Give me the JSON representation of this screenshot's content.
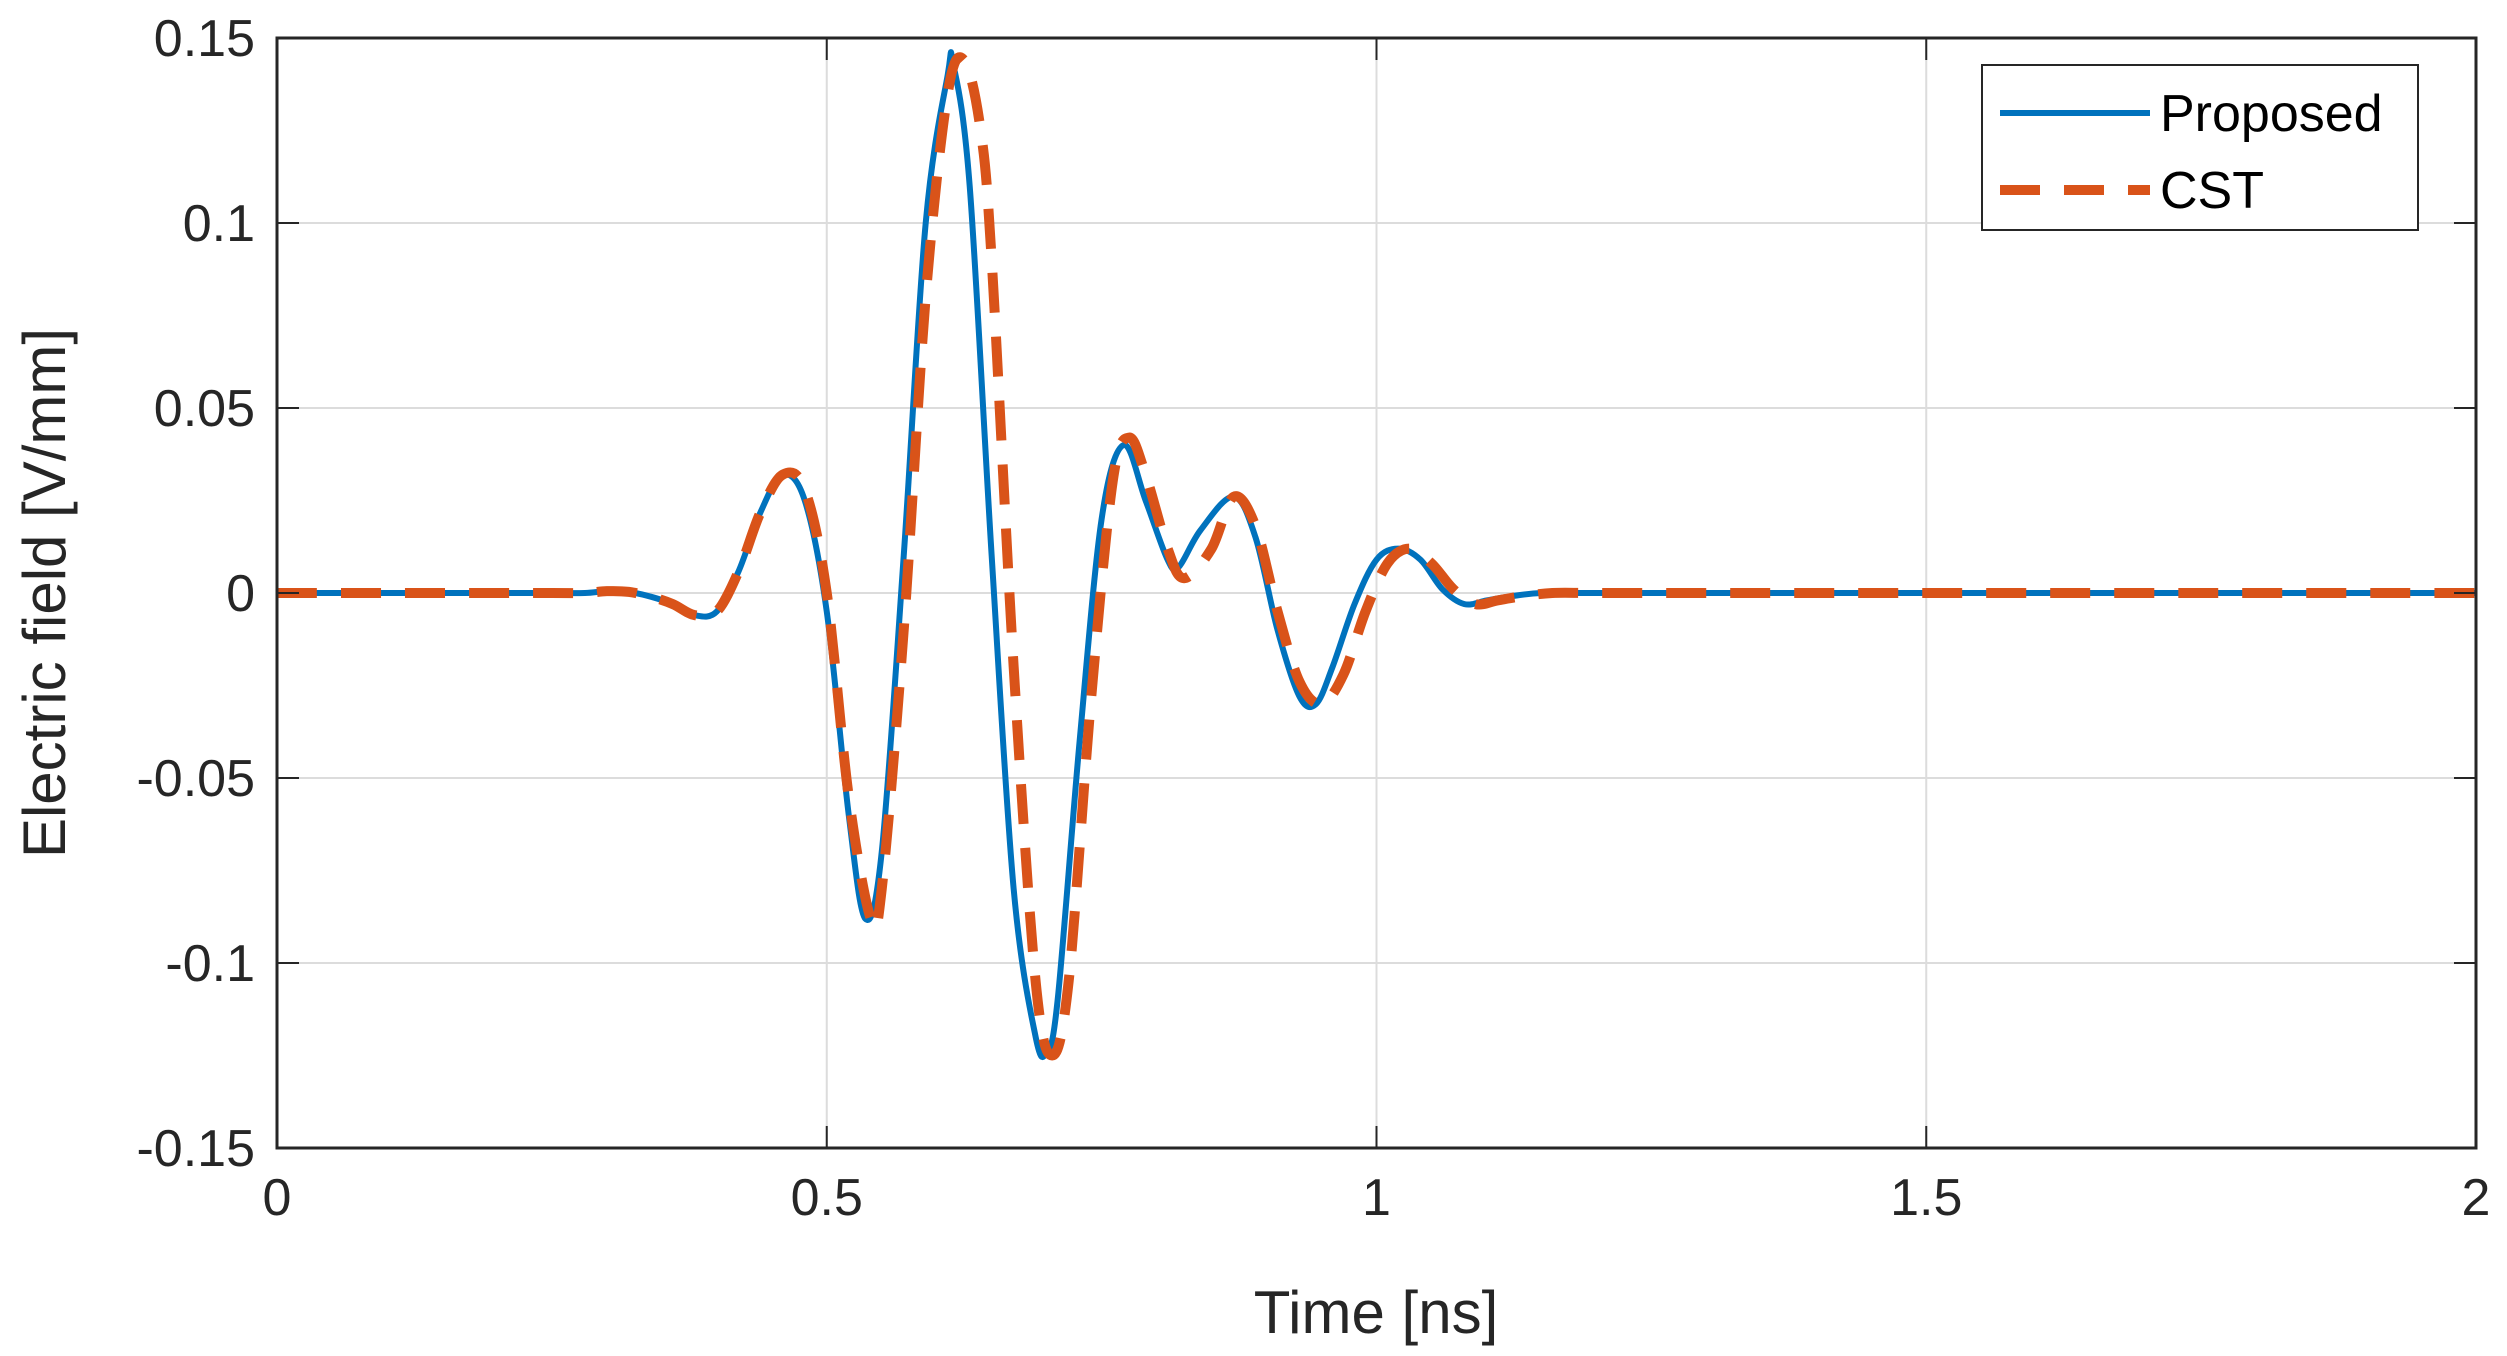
{
  "chart_data": {
    "type": "line",
    "title": "",
    "xlabel": "Time [ns]",
    "ylabel": "Electric field [V/mm]",
    "xlim": [
      0,
      2
    ],
    "ylim": [
      -0.15,
      0.15
    ],
    "xticks": [
      0,
      0.5,
      1,
      1.5,
      2
    ],
    "xtick_labels": [
      "0",
      "0.5",
      "1",
      "1.5",
      "2"
    ],
    "yticks": [
      -0.15,
      -0.1,
      -0.05,
      0,
      0.05,
      0.1,
      0.15
    ],
    "ytick_labels": [
      "-0.15",
      "-0.1",
      "-0.05",
      "0",
      "0.05",
      "0.1",
      "0.15"
    ],
    "grid": true,
    "legend_position": "top-right",
    "series": [
      {
        "name": "Proposed",
        "color": "#0072BD",
        "style": "solid",
        "x": [
          0,
          0.1,
          0.2,
          0.25,
          0.28,
          0.3,
          0.32,
          0.34,
          0.36,
          0.38,
          0.4,
          0.42,
          0.44,
          0.46,
          0.48,
          0.5,
          0.52,
          0.535,
          0.55,
          0.57,
          0.59,
          0.61,
          0.615,
          0.63,
          0.65,
          0.67,
          0.69,
          0.7,
          0.71,
          0.73,
          0.75,
          0.77,
          0.79,
          0.81,
          0.82,
          0.84,
          0.87,
          0.89,
          0.91,
          0.93,
          0.945,
          0.96,
          0.98,
          1.0,
          1.02,
          1.04,
          1.06,
          1.08,
          1.1,
          1.12,
          1.15,
          1.2,
          1.3,
          1.5,
          1.75,
          2.0
        ],
        "y": [
          0,
          0,
          0,
          0,
          0,
          0.0005,
          0.0003,
          -0.001,
          -0.003,
          -0.006,
          -0.005,
          0.006,
          0.022,
          0.032,
          0.025,
          -0.005,
          -0.06,
          -0.088,
          -0.07,
          0.01,
          0.1,
          0.14,
          0.143,
          0.11,
          0.01,
          -0.08,
          -0.12,
          -0.124,
          -0.11,
          -0.04,
          0.02,
          0.04,
          0.025,
          0.009,
          0.007,
          0.017,
          0.026,
          0.015,
          -0.01,
          -0.028,
          -0.03,
          -0.02,
          -0.003,
          0.009,
          0.012,
          0.009,
          0.001,
          -0.003,
          -0.002,
          -0.001,
          0,
          0,
          0,
          0,
          0,
          0
        ]
      },
      {
        "name": "CST",
        "color": "#D95319",
        "style": "dashed",
        "x": [
          0,
          0.1,
          0.2,
          0.25,
          0.28,
          0.3,
          0.32,
          0.34,
          0.36,
          0.38,
          0.4,
          0.42,
          0.44,
          0.46,
          0.48,
          0.5,
          0.52,
          0.54,
          0.55,
          0.57,
          0.59,
          0.61,
          0.625,
          0.64,
          0.65,
          0.67,
          0.69,
          0.705,
          0.72,
          0.74,
          0.76,
          0.775,
          0.79,
          0.81,
          0.825,
          0.85,
          0.87,
          0.89,
          0.91,
          0.93,
          0.95,
          0.97,
          0.99,
          1.01,
          1.03,
          1.05,
          1.07,
          1.09,
          1.11,
          1.13,
          1.16,
          1.2,
          1.3,
          1.5,
          1.75,
          2.0
        ],
        "y": [
          0,
          0,
          0,
          0,
          0,
          0.0005,
          0.0003,
          -0.001,
          -0.003,
          -0.006,
          -0.005,
          0.006,
          0.022,
          0.032,
          0.028,
          0.0,
          -0.055,
          -0.088,
          -0.08,
          -0.01,
          0.08,
          0.135,
          0.144,
          0.125,
          0.09,
          -0.02,
          -0.105,
          -0.125,
          -0.105,
          -0.03,
          0.03,
          0.042,
          0.032,
          0.012,
          0.004,
          0.012,
          0.026,
          0.018,
          -0.005,
          -0.024,
          -0.03,
          -0.022,
          -0.005,
          0.008,
          0.012,
          0.008,
          0.001,
          -0.003,
          -0.002,
          -0.001,
          0,
          0,
          0,
          0,
          0,
          0
        ]
      }
    ]
  }
}
